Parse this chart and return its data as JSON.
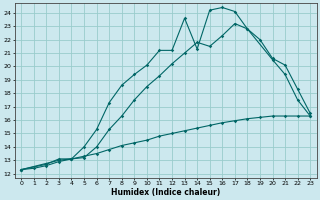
{
  "xlabel": "Humidex (Indice chaleur)",
  "bg_color": "#cce8ee",
  "grid_color": "#99cccc",
  "line_color": "#006666",
  "xlim": [
    -0.5,
    23.5
  ],
  "ylim": [
    11.7,
    24.7
  ],
  "xticks": [
    0,
    1,
    2,
    3,
    4,
    5,
    6,
    7,
    8,
    9,
    10,
    11,
    12,
    13,
    14,
    15,
    16,
    17,
    18,
    19,
    20,
    21,
    22,
    23
  ],
  "yticks": [
    12,
    13,
    14,
    15,
    16,
    17,
    18,
    19,
    20,
    21,
    22,
    23,
    24
  ],
  "curve1_x": [
    0,
    2,
    3,
    4,
    5,
    6,
    7,
    8,
    9,
    10,
    11,
    12,
    13,
    14,
    15,
    16,
    17,
    18,
    20,
    21,
    22,
    23
  ],
  "curve1_y": [
    12.3,
    12.7,
    13.1,
    13.1,
    14.0,
    15.3,
    17.3,
    18.6,
    19.4,
    20.1,
    21.2,
    21.2,
    23.6,
    21.3,
    24.2,
    24.4,
    24.1,
    22.8,
    20.5,
    19.4,
    17.5,
    16.3
  ],
  "curve2_x": [
    0,
    3,
    4,
    5,
    6,
    7,
    8,
    9,
    10,
    11,
    12,
    13,
    14,
    15,
    16,
    17,
    18,
    19,
    20,
    21,
    22,
    23
  ],
  "curve2_y": [
    12.3,
    13.0,
    13.1,
    13.2,
    14.0,
    15.3,
    16.3,
    17.5,
    18.5,
    19.3,
    20.2,
    21.0,
    21.8,
    21.5,
    22.3,
    23.2,
    22.8,
    22.0,
    20.6,
    20.1,
    18.3,
    16.5
  ],
  "curve3_x": [
    0,
    1,
    2,
    3,
    4,
    5,
    6,
    7,
    8,
    9,
    10,
    11,
    12,
    13,
    14,
    15,
    16,
    17,
    18,
    19,
    20,
    21,
    22,
    23
  ],
  "curve3_y": [
    12.3,
    12.4,
    12.6,
    12.9,
    13.1,
    13.3,
    13.5,
    13.8,
    14.1,
    14.3,
    14.5,
    14.8,
    15.0,
    15.2,
    15.4,
    15.6,
    15.8,
    15.95,
    16.1,
    16.2,
    16.3,
    16.3,
    16.3,
    16.3
  ]
}
